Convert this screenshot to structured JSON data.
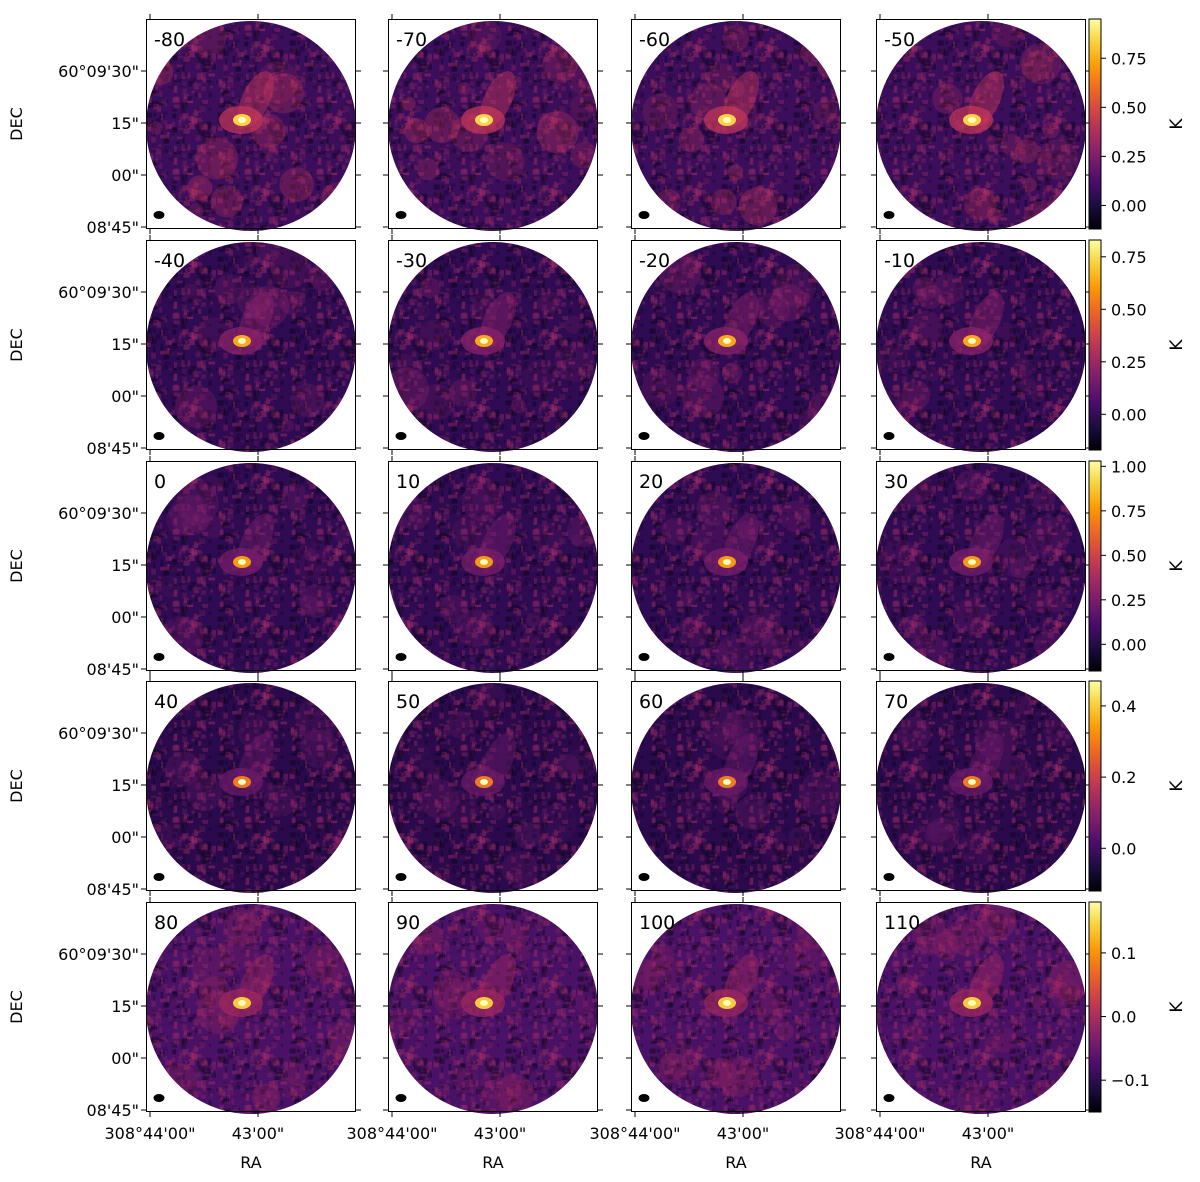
{
  "chart_data": {
    "type": "heatmap",
    "layout": {
      "rows": 5,
      "cols": 4
    },
    "colormap": "inferno",
    "colormap_stops": [
      "#000004",
      "#1b0c41",
      "#4a0c6b",
      "#781c6d",
      "#a52c60",
      "#cf4446",
      "#ed6925",
      "#fb9b06",
      "#f7d13d",
      "#fcffa4"
    ],
    "panel_labels": [
      "-80",
      "-70",
      "-60",
      "-50",
      "-40",
      "-30",
      "-20",
      "-10",
      "0",
      "10",
      "20",
      "30",
      "40",
      "50",
      "60",
      "70",
      "80",
      "90",
      "100",
      "110"
    ],
    "xlabel": "RA",
    "ylabel": "DEC",
    "xtick_labels": [
      "308°44'00\"",
      "43'00\""
    ],
    "ytick_labels": [
      "60°09'30\"",
      "15\"",
      "00\"",
      "08'45\""
    ],
    "colorbars": [
      {
        "label": "K",
        "range": [
          -0.12,
          0.95
        ],
        "ticks": [
          0.75,
          0.5,
          0.25,
          0.0
        ],
        "tick_labels": [
          "0.75",
          "0.50",
          "0.25",
          "0.00"
        ]
      },
      {
        "label": "K",
        "range": [
          -0.17,
          0.83
        ],
        "ticks": [
          0.75,
          0.5,
          0.25,
          0.0
        ],
        "tick_labels": [
          "0.75",
          "0.50",
          "0.25",
          "0.00"
        ]
      },
      {
        "label": "K",
        "range": [
          -0.15,
          1.03
        ],
        "ticks": [
          1.0,
          0.75,
          0.5,
          0.25,
          0.0
        ],
        "tick_labels": [
          "1.00",
          "0.75",
          "0.50",
          "0.25",
          "0.00"
        ]
      },
      {
        "label": "K",
        "range": [
          -0.12,
          0.47
        ],
        "ticks": [
          0.4,
          0.2,
          0.0
        ],
        "tick_labels": [
          "0.4",
          "0.2",
          "0.0"
        ]
      },
      {
        "label": "K",
        "range": [
          -0.15,
          0.18
        ],
        "ticks": [
          0.1,
          0.0,
          -0.1
        ],
        "tick_labels": [
          "0.1",
          "0.0",
          "−0.1"
        ]
      }
    ]
  }
}
